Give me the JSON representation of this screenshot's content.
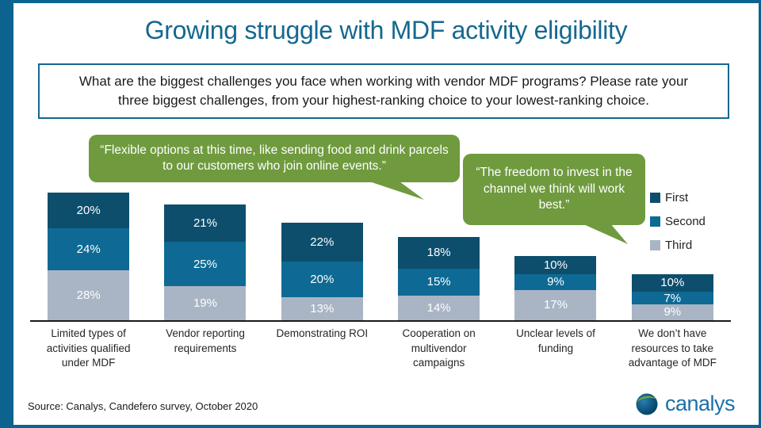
{
  "page": {
    "title": "Growing struggle with MDF activity eligibility",
    "question": "What are the biggest challenges you face when working with vendor MDF programs? Please rate your three biggest challenges, from your highest-ranking choice to your lowest-ranking choice.",
    "source": "Source: Canalys, Candefero survey, October 2020",
    "logo_text": "canalys"
  },
  "quotes": [
    {
      "text": "“Flexible options at this time, like sending food and drink parcels to our customers who join online events.”"
    },
    {
      "text": "“The freedom to invest in the channel we think will work best.”"
    }
  ],
  "colors": {
    "frame_teal": "#0d6390",
    "title_teal": "#15688f",
    "quote_green": "#6f9a3e",
    "logo_blue": "#1a71a8"
  },
  "chart_data": {
    "type": "bar",
    "stacked": true,
    "title": "",
    "xlabel": "",
    "ylabel": "",
    "y_axis_visible": false,
    "value_suffix": "%",
    "legend_position": "right",
    "stack_order_top_to_bottom": [
      "First",
      "Second",
      "Third"
    ],
    "categories": [
      "Limited types of activities qualified under MDF",
      "Vendor reporting requirements",
      "Demonstrating ROI",
      "Cooperation on multivendor campaigns",
      "Unclear levels of funding",
      "We don’t have resources to take advantage of MDF"
    ],
    "series": [
      {
        "name": "First",
        "color": "#0d4e6d",
        "values": [
          20,
          21,
          22,
          18,
          10,
          10
        ]
      },
      {
        "name": "Second",
        "color": "#0e6a94",
        "values": [
          24,
          25,
          20,
          15,
          9,
          7
        ]
      },
      {
        "name": "Third",
        "color": "#a9b5c5",
        "values": [
          28,
          19,
          13,
          14,
          17,
          9
        ]
      }
    ]
  }
}
